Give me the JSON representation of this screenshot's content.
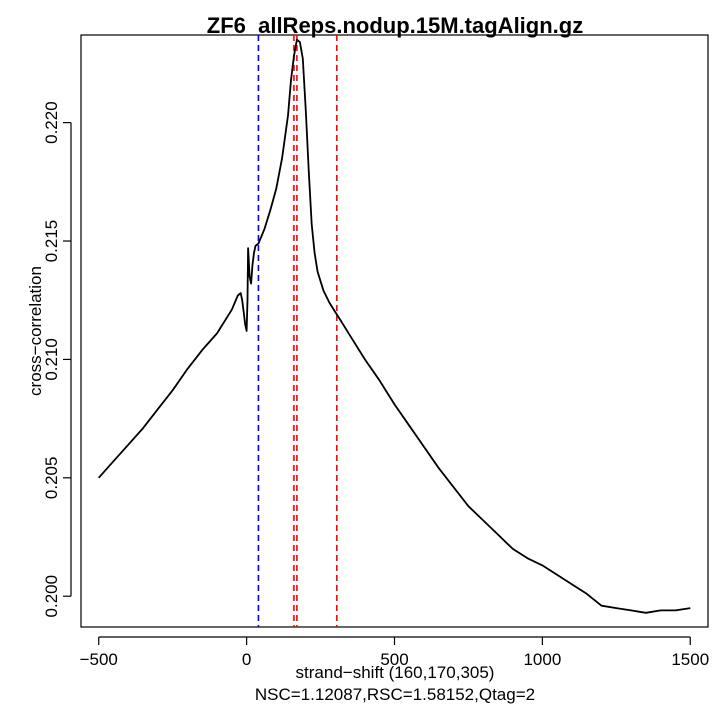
{
  "chart_data": {
    "type": "line",
    "title": "ZF6_allReps.nodup.15M.tagAlign.gz",
    "xlabel": "strand−shift (160,170,305)",
    "subtitle": "NSC=1.12087,RSC=1.58152,Qtag=2",
    "ylabel": "cross−correlation",
    "xlim": [
      -560,
      1560
    ],
    "ylim": [
      0.1987,
      0.2237
    ],
    "x_ticks": [
      -500,
      0,
      500,
      1000,
      1500
    ],
    "x_tick_labels": [
      "−500",
      "0",
      "500",
      "1000",
      "1500"
    ],
    "y_ticks": [
      0.2,
      0.205,
      0.21,
      0.215,
      0.22
    ],
    "y_tick_labels": [
      "0.200",
      "0.205",
      "0.210",
      "0.215",
      "0.220"
    ],
    "grid": false,
    "series": [
      {
        "color": "#000000",
        "x": [
          -500,
          -450,
          -400,
          -350,
          -300,
          -250,
          -200,
          -150,
          -100,
          -50,
          -30,
          -20,
          -15,
          -10,
          -5,
          0,
          3,
          5,
          10,
          15,
          20,
          25,
          30,
          40,
          60,
          80,
          100,
          120,
          140,
          150,
          160,
          170,
          180,
          190,
          200,
          210,
          220,
          230,
          240,
          260,
          280,
          300,
          320,
          350,
          400,
          450,
          500,
          550,
          600,
          650,
          700,
          750,
          800,
          850,
          900,
          950,
          1000,
          1050,
          1100,
          1150,
          1200,
          1250,
          1300,
          1350,
          1400,
          1450,
          1500
        ],
        "y": [
          0.205,
          0.2057,
          0.2064,
          0.2071,
          0.2079,
          0.2087,
          0.2096,
          0.2104,
          0.2111,
          0.2121,
          0.2127,
          0.2128,
          0.2125,
          0.212,
          0.2115,
          0.2112,
          0.2125,
          0.2147,
          0.2135,
          0.2132,
          0.214,
          0.2145,
          0.2148,
          0.2149,
          0.2155,
          0.2163,
          0.2172,
          0.2185,
          0.2203,
          0.2218,
          0.2228,
          0.2235,
          0.2234,
          0.2227,
          0.2205,
          0.218,
          0.2157,
          0.2145,
          0.2137,
          0.2129,
          0.2124,
          0.212,
          0.2116,
          0.211,
          0.21,
          0.2091,
          0.2081,
          0.2072,
          0.2063,
          0.2054,
          0.2046,
          0.2038,
          0.2032,
          0.2026,
          0.202,
          0.2016,
          0.2013,
          0.2009,
          0.2005,
          0.2001,
          0.1996,
          0.1995,
          0.1994,
          0.1993,
          0.1994,
          0.1994,
          0.1995
        ]
      }
    ],
    "vlines": [
      {
        "x": 40,
        "color": "#0000ff",
        "style": "dashed"
      },
      {
        "x": 160,
        "color": "#ff0000",
        "style": "dashed"
      },
      {
        "x": 170,
        "color": "#ff0000",
        "style": "dashed"
      },
      {
        "x": 305,
        "color": "#ff0000",
        "style": "dashed"
      }
    ]
  }
}
